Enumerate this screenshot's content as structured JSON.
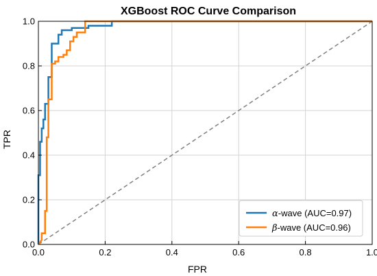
{
  "chart_data": {
    "type": "line",
    "title": "XGBoost ROC Curve Comparison",
    "xlabel": "FPR",
    "ylabel": "TPR",
    "xlim": [
      0.0,
      1.0
    ],
    "ylim": [
      0.0,
      1.0
    ],
    "xticks": [
      "0.0",
      "0.2",
      "0.4",
      "0.6",
      "0.8",
      "1.0"
    ],
    "yticks": [
      "0.0",
      "0.2",
      "0.4",
      "0.6",
      "0.8",
      "1.0"
    ],
    "grid": true,
    "legend_position": "bottom-right",
    "series": [
      {
        "name": "α-wave (AUC=0.97)",
        "legend_greek": "α",
        "legend_rest": "-wave (AUC=0.97)",
        "color": "#1f77b4",
        "x": [
          0.0,
          0.0,
          0.005,
          0.005,
          0.01,
          0.01,
          0.015,
          0.015,
          0.02,
          0.02,
          0.03,
          0.03,
          0.04,
          0.04,
          0.06,
          0.06,
          0.07,
          0.07,
          0.08,
          0.08,
          0.1,
          0.1,
          0.15,
          0.15,
          0.22,
          0.22,
          1.0
        ],
        "y": [
          0.0,
          0.31,
          0.31,
          0.46,
          0.46,
          0.52,
          0.52,
          0.56,
          0.56,
          0.63,
          0.63,
          0.75,
          0.75,
          0.9,
          0.9,
          0.94,
          0.94,
          0.96,
          0.96,
          0.96,
          0.96,
          0.97,
          0.97,
          0.98,
          0.98,
          1.0,
          1.0
        ]
      },
      {
        "name": "β-wave (AUC=0.96)",
        "legend_greek": "β",
        "legend_rest": "-wave (AUC=0.96)",
        "color": "#ff7f0e",
        "x": [
          0.0,
          0.01,
          0.01,
          0.02,
          0.02,
          0.025,
          0.025,
          0.03,
          0.03,
          0.04,
          0.04,
          0.05,
          0.05,
          0.06,
          0.06,
          0.075,
          0.075,
          0.085,
          0.085,
          0.095,
          0.095,
          0.105,
          0.105,
          0.115,
          0.115,
          0.14,
          0.14,
          1.0
        ],
        "y": [
          0.0,
          0.02,
          0.05,
          0.05,
          0.15,
          0.15,
          0.48,
          0.48,
          0.65,
          0.65,
          0.81,
          0.81,
          0.82,
          0.82,
          0.84,
          0.84,
          0.85,
          0.85,
          0.87,
          0.87,
          0.91,
          0.91,
          0.93,
          0.93,
          0.95,
          0.95,
          1.0,
          1.0
        ]
      },
      {
        "name": "",
        "style": "dashed",
        "color": "#808080",
        "x": [
          0.0,
          1.0
        ],
        "y": [
          0.0,
          1.0
        ]
      }
    ]
  }
}
